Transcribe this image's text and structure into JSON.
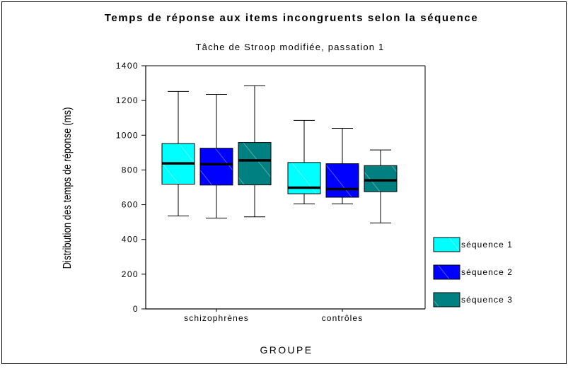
{
  "chart_data": {
    "type": "boxplot",
    "title": "Temps de réponse aux items incongruents selon la séquence",
    "subtitle": "Tâche de Stroop modifiée, passation 1",
    "xlabel": "GROUPE",
    "ylabel": "Distribution des temps de réponse (ms)",
    "ylim": [
      0,
      1400
    ],
    "yticks": [
      0,
      200,
      400,
      600,
      800,
      1000,
      1200,
      1400
    ],
    "categories": [
      "schizophrènes",
      "contrôles"
    ],
    "grid": false,
    "legend_position": "right",
    "series": [
      {
        "name": "séquence 1",
        "color": "#00ffff",
        "boxes": [
          {
            "whisker_low": 535,
            "q1": 718,
            "median": 838,
            "q3": 952,
            "whisker_high": 1252
          },
          {
            "whisker_low": 605,
            "q1": 663,
            "median": 698,
            "q3": 843,
            "whisker_high": 1085
          }
        ]
      },
      {
        "name": "séquence 2",
        "color": "#0000ff",
        "boxes": [
          {
            "whisker_low": 523,
            "q1": 713,
            "median": 833,
            "q3": 925,
            "whisker_high": 1235
          },
          {
            "whisker_low": 605,
            "q1": 643,
            "median": 690,
            "q3": 836,
            "whisker_high": 1040
          }
        ]
      },
      {
        "name": "séquence 3",
        "color": "#008080",
        "boxes": [
          {
            "whisker_low": 530,
            "q1": 714,
            "median": 855,
            "q3": 958,
            "whisker_high": 1285
          },
          {
            "whisker_low": 495,
            "q1": 675,
            "median": 740,
            "q3": 825,
            "whisker_high": 915
          }
        ]
      }
    ]
  }
}
